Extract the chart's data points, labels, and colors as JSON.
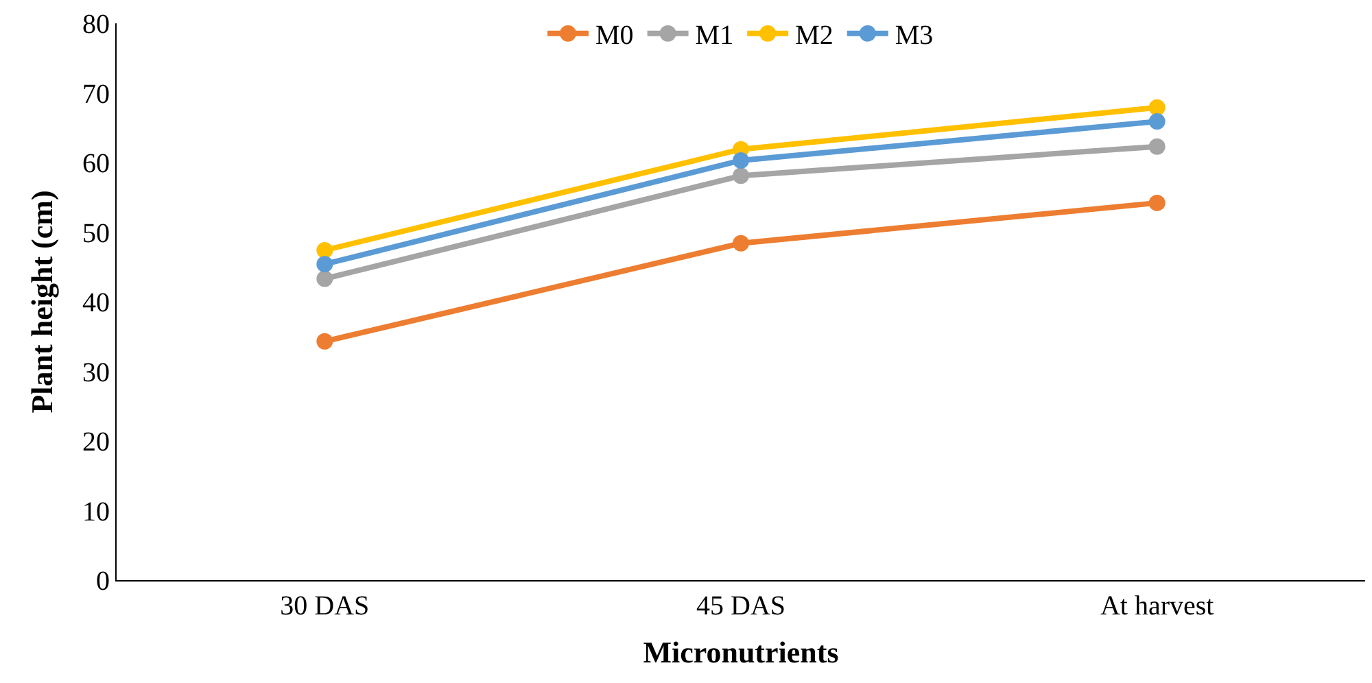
{
  "chart_data": {
    "type": "line",
    "xlabel": "Micronutrients",
    "ylabel": "Plant height (cm)",
    "categories": [
      "30 DAS",
      "45 DAS",
      "At harvest"
    ],
    "series": [
      {
        "name": "M0",
        "color": "#ed7d31",
        "values": [
          34.3,
          48.4,
          54.2
        ]
      },
      {
        "name": "M1",
        "color": "#a5a5a5",
        "values": [
          43.3,
          58.1,
          62.3
        ]
      },
      {
        "name": "M2",
        "color": "#ffc000",
        "values": [
          47.4,
          61.9,
          67.9
        ]
      },
      {
        "name": "M3",
        "color": "#5b9bd5",
        "values": [
          45.4,
          60.3,
          65.9
        ]
      }
    ],
    "ylim": [
      0,
      80
    ],
    "yticks": [
      0,
      10,
      20,
      30,
      40,
      50,
      60,
      70,
      80
    ],
    "legend": "top",
    "marker": "circle",
    "line_style": "solid"
  }
}
